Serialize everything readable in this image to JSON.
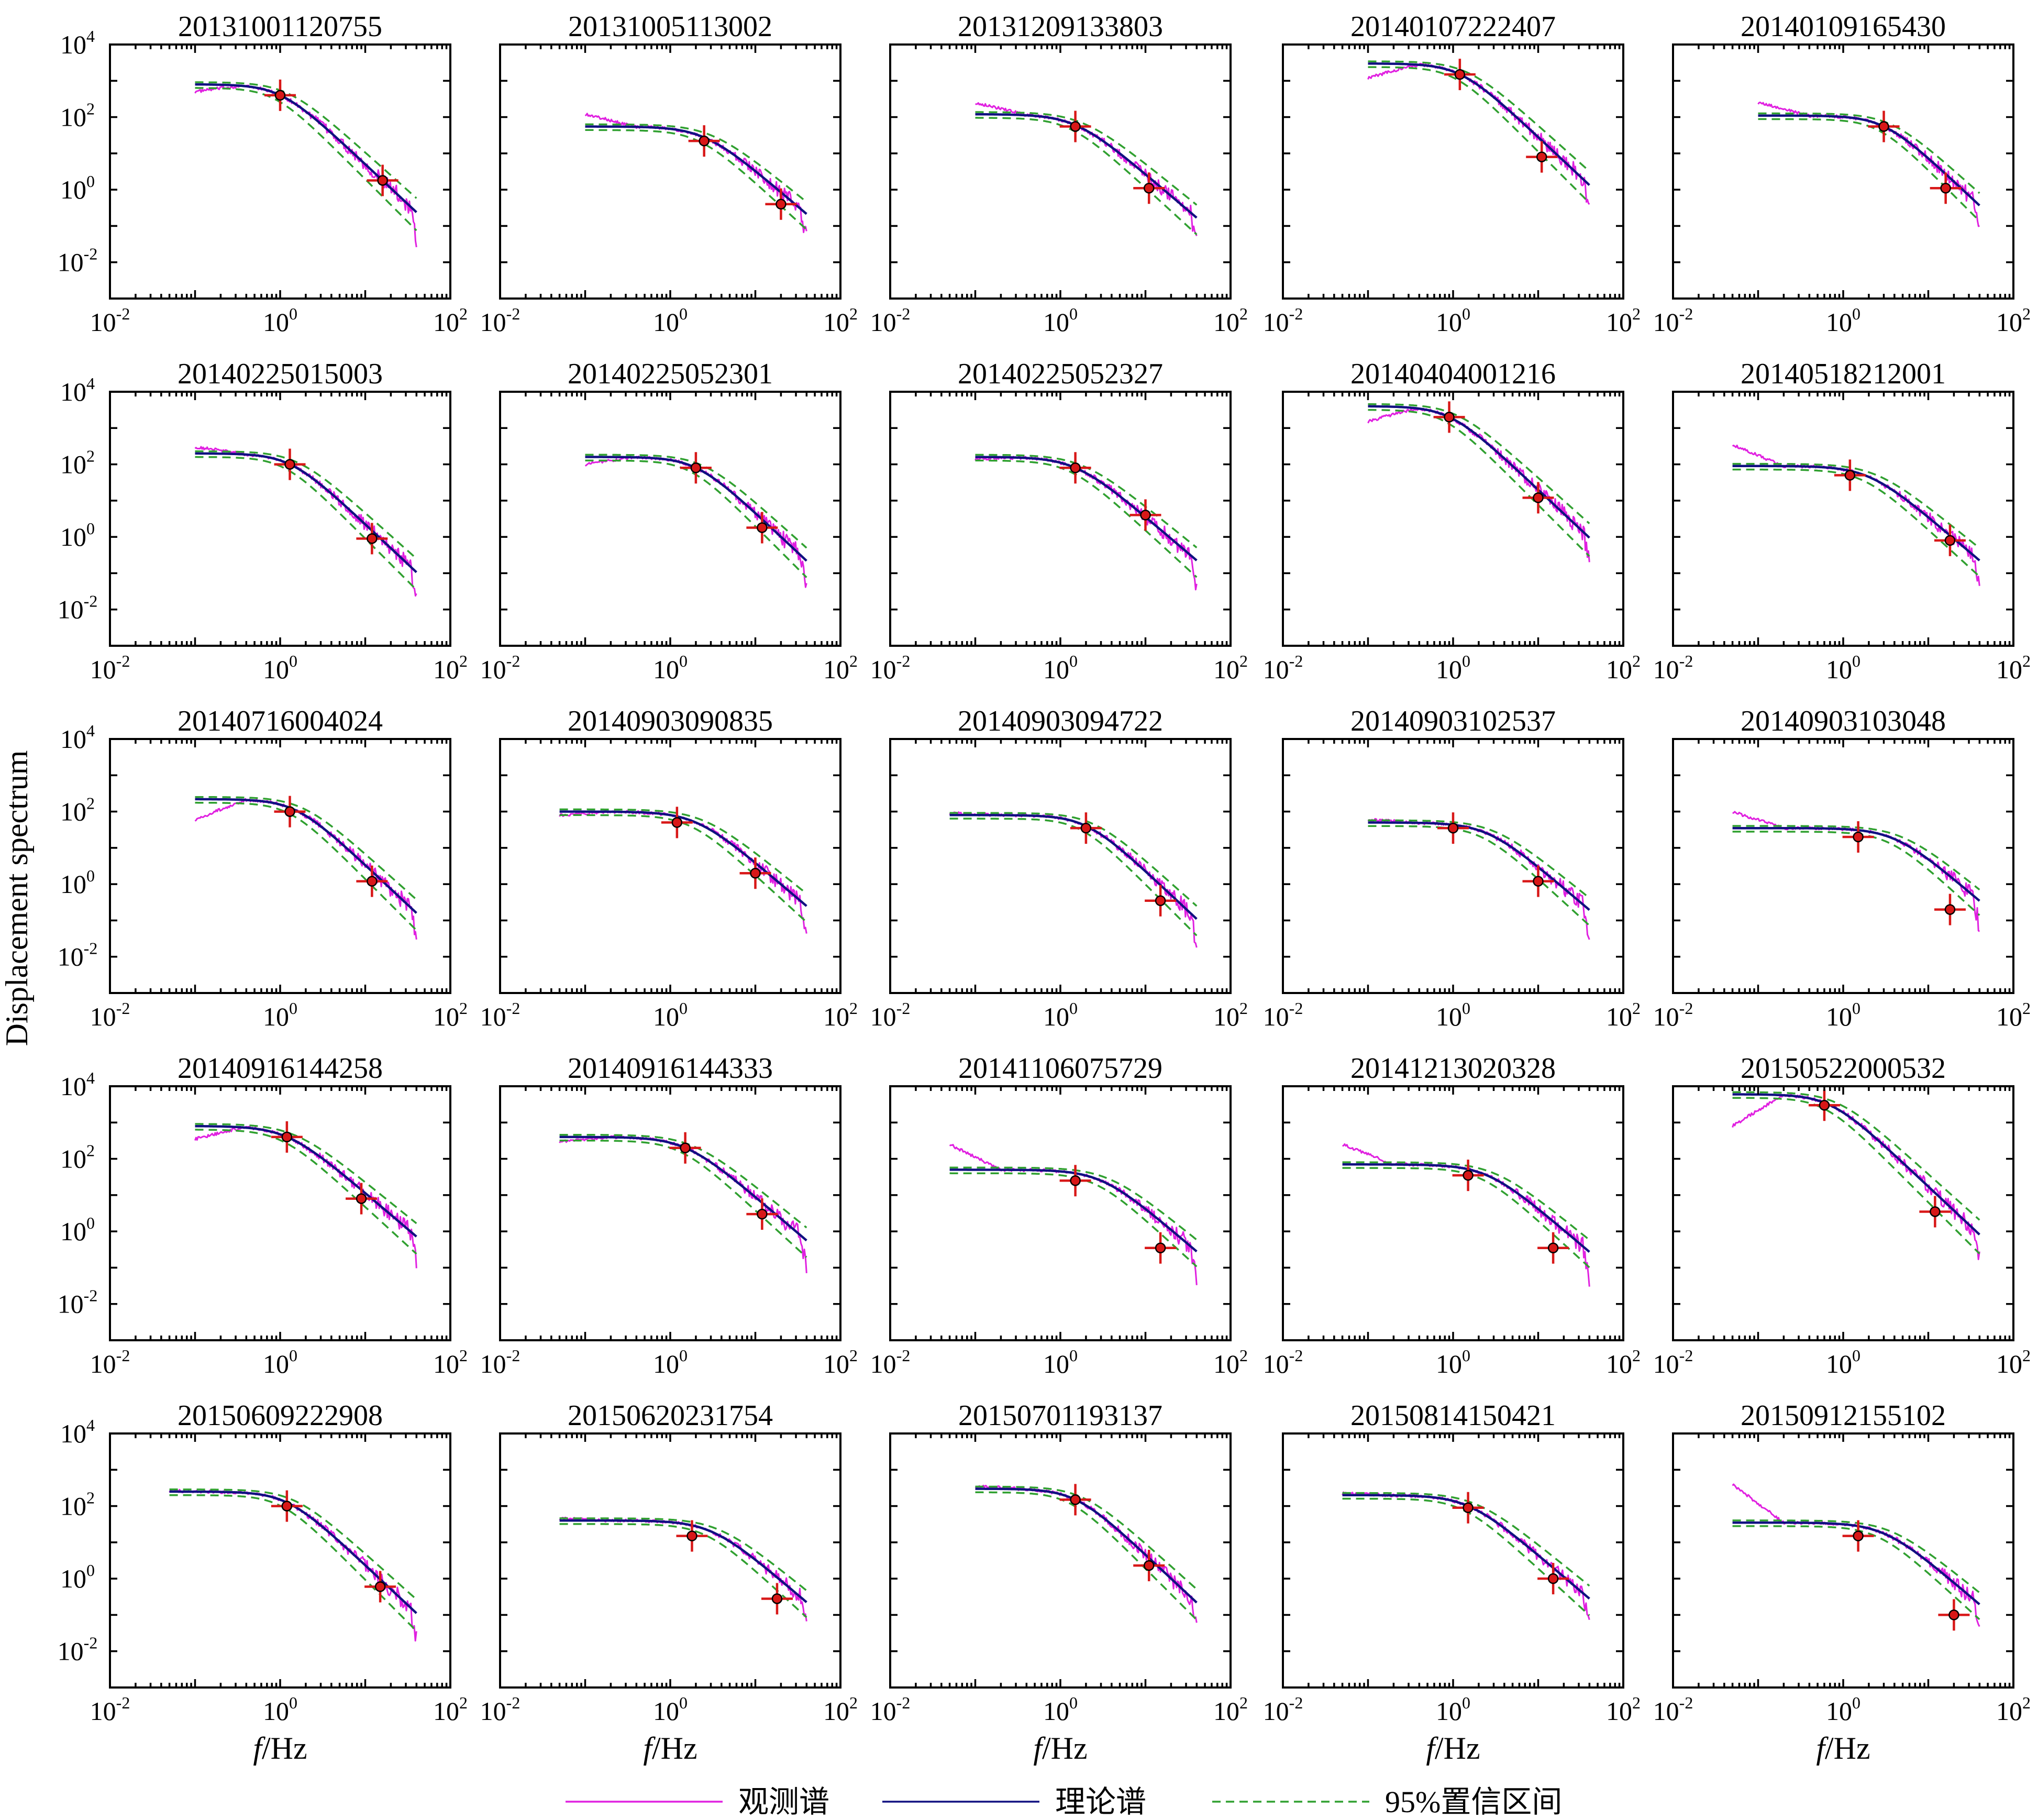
{
  "figure": {
    "ylabel": "Displacement spectrum",
    "xlabel_italic": "f",
    "xlabel_unit": "/Hz"
  },
  "legend": [
    {
      "label": "观测谱",
      "style": "solid",
      "color": "#e020e0"
    },
    {
      "label": "理论谱",
      "style": "solid",
      "color": "#101080"
    },
    {
      "label": "95%置信区间",
      "style": "dashed",
      "color": "#30a030"
    }
  ],
  "colors": {
    "observed": "#e020e0",
    "theoretical": "#101080",
    "confidence": "#30a030",
    "marker_fill": "#d81818",
    "axis": "#000000"
  },
  "chart_data": {
    "type": "line",
    "xscale": "log",
    "yscale": "log",
    "xlim": [
      0.01,
      100
    ],
    "ylim": [
      0.001,
      10000
    ],
    "xticks": [
      0.01,
      1,
      100
    ],
    "yticks": [
      0.01,
      1,
      100,
      10000
    ],
    "layout": "5x5 grid",
    "series_names": [
      "观测谱",
      "理论谱",
      "95%置信区间"
    ],
    "panels": [
      {
        "id": "20131001120755",
        "fmin": 0.1,
        "fmax": 40,
        "omega0": 800,
        "fc": 1.0,
        "n": 2.2,
        "obs_lo": 500,
        "markers": [
          [
            1.0,
            400
          ],
          [
            16,
            1.8
          ]
        ]
      },
      {
        "id": "20131005113002",
        "fmin": 0.1,
        "fmax": 40,
        "omega0": 55,
        "fc": 2.5,
        "n": 2.0,
        "obs_lo": 120,
        "markers": [
          [
            2.5,
            22
          ],
          [
            20,
            0.4
          ]
        ]
      },
      {
        "id": "20131209133803",
        "fmin": 0.1,
        "fmax": 40,
        "omega0": 120,
        "fc": 1.5,
        "n": 2.0,
        "obs_lo": 250,
        "markers": [
          [
            1.5,
            55
          ],
          [
            11,
            1.1
          ]
        ]
      },
      {
        "id": "20140107222407",
        "fmin": 0.1,
        "fmax": 40,
        "omega0": 3000,
        "fc": 1.2,
        "n": 2.2,
        "obs_lo": 1200,
        "markers": [
          [
            1.2,
            1500
          ],
          [
            11,
            8
          ]
        ]
      },
      {
        "id": "20140109165430",
        "fmin": 0.1,
        "fmax": 40,
        "omega0": 110,
        "fc": 3.0,
        "n": 2.2,
        "obs_lo": 250,
        "markers": [
          [
            3.0,
            55
          ],
          [
            16,
            1.1
          ]
        ]
      },
      {
        "id": "20140225015003",
        "fmin": 0.1,
        "fmax": 40,
        "omega0": 200,
        "fc": 1.3,
        "n": 2.2,
        "obs_lo": 300,
        "markers": [
          [
            1.3,
            100
          ],
          [
            12,
            0.9
          ]
        ]
      },
      {
        "id": "20140225052301",
        "fmin": 0.1,
        "fmax": 40,
        "omega0": 160,
        "fc": 2.0,
        "n": 2.2,
        "obs_lo": 100,
        "markers": [
          [
            2.0,
            80
          ],
          [
            12,
            1.8
          ]
        ]
      },
      {
        "id": "20140225052327",
        "fmin": 0.1,
        "fmax": 40,
        "omega0": 160,
        "fc": 1.5,
        "n": 2.0,
        "obs_lo": 140,
        "markers": [
          [
            1.5,
            80
          ],
          [
            10,
            4
          ]
        ]
      },
      {
        "id": "20140404001216",
        "fmin": 0.1,
        "fmax": 40,
        "omega0": 4000,
        "fc": 0.9,
        "n": 2.2,
        "obs_lo": 1500,
        "markers": [
          [
            0.9,
            2000
          ],
          [
            10,
            12
          ]
        ]
      },
      {
        "id": "20140518212001",
        "fmin": 0.05,
        "fmax": 40,
        "omega0": 90,
        "fc": 2.0,
        "n": 2.0,
        "obs_lo": 350,
        "markers": [
          [
            1.2,
            50
          ],
          [
            18,
            0.8
          ]
        ]
      },
      {
        "id": "20140716004024",
        "fmin": 0.1,
        "fmax": 40,
        "omega0": 220,
        "fc": 1.5,
        "n": 2.2,
        "obs_lo": 60,
        "markers": [
          [
            1.3,
            100
          ],
          [
            12,
            1.2
          ]
        ]
      },
      {
        "id": "20140903090835",
        "fmin": 0.05,
        "fmax": 40,
        "omega0": 100,
        "fc": 2.0,
        "n": 2.0,
        "obs_lo": 80,
        "markers": [
          [
            1.2,
            50
          ],
          [
            10,
            2
          ]
        ]
      },
      {
        "id": "20140903094722",
        "fmin": 0.05,
        "fmax": 40,
        "omega0": 80,
        "fc": 2.0,
        "n": 2.2,
        "obs_lo": 90,
        "markers": [
          [
            2.0,
            35
          ],
          [
            15,
            0.35
          ]
        ]
      },
      {
        "id": "20140903102537",
        "fmin": 0.1,
        "fmax": 40,
        "omega0": 50,
        "fc": 2.5,
        "n": 2.0,
        "obs_lo": 60,
        "markers": [
          [
            1.0,
            35
          ],
          [
            10,
            1.2
          ]
        ]
      },
      {
        "id": "20140903103048",
        "fmin": 0.05,
        "fmax": 40,
        "omega0": 35,
        "fc": 4.0,
        "n": 2.0,
        "obs_lo": 100,
        "markers": [
          [
            1.5,
            20
          ],
          [
            18,
            0.2
          ]
        ]
      },
      {
        "id": "20140916144258",
        "fmin": 0.1,
        "fmax": 40,
        "omega0": 800,
        "fc": 1.2,
        "n": 2.0,
        "obs_lo": 350,
        "markers": [
          [
            1.2,
            400
          ],
          [
            9,
            8
          ]
        ]
      },
      {
        "id": "20140916144333",
        "fmin": 0.05,
        "fmax": 40,
        "omega0": 400,
        "fc": 1.5,
        "n": 2.0,
        "obs_lo": 300,
        "markers": [
          [
            1.5,
            200
          ],
          [
            12,
            3
          ]
        ]
      },
      {
        "id": "20141106075729",
        "fmin": 0.05,
        "fmax": 40,
        "omega0": 50,
        "fc": 3.0,
        "n": 2.0,
        "obs_lo": 250,
        "markers": [
          [
            1.5,
            25
          ],
          [
            15,
            0.35
          ]
        ]
      },
      {
        "id": "20141213020328",
        "fmin": 0.05,
        "fmax": 40,
        "omega0": 70,
        "fc": 2.5,
        "n": 2.0,
        "obs_lo": 250,
        "markers": [
          [
            1.5,
            35
          ],
          [
            15,
            0.35
          ]
        ]
      },
      {
        "id": "20150522000532",
        "fmin": 0.05,
        "fmax": 40,
        "omega0": 6000,
        "fc": 0.7,
        "n": 2.2,
        "obs_lo": 800,
        "markers": [
          [
            0.6,
            3000
          ],
          [
            12,
            3.5
          ]
        ]
      },
      {
        "id": "20150609222908",
        "fmin": 0.05,
        "fmax": 40,
        "omega0": 250,
        "fc": 1.2,
        "n": 2.2,
        "obs_lo": 260,
        "markers": [
          [
            1.2,
            100
          ],
          [
            15,
            0.6
          ]
        ]
      },
      {
        "id": "20150620231754",
        "fmin": 0.05,
        "fmax": 40,
        "omega0": 40,
        "fc": 3.0,
        "n": 2.0,
        "obs_lo": 45,
        "markers": [
          [
            1.8,
            15
          ],
          [
            18,
            0.28
          ]
        ]
      },
      {
        "id": "20150701193137",
        "fmin": 0.1,
        "fmax": 40,
        "omega0": 300,
        "fc": 1.5,
        "n": 2.2,
        "obs_lo": 350,
        "markers": [
          [
            1.5,
            150
          ],
          [
            11,
            2.3
          ]
        ]
      },
      {
        "id": "20150814150421",
        "fmin": 0.05,
        "fmax": 40,
        "omega0": 200,
        "fc": 1.5,
        "n": 2.0,
        "obs_lo": 220,
        "markers": [
          [
            1.5,
            90
          ],
          [
            15,
            1.0
          ]
        ]
      },
      {
        "id": "20150912155102",
        "fmin": 0.05,
        "fmax": 40,
        "omega0": 35,
        "fc": 3.0,
        "n": 2.0,
        "obs_lo": 400,
        "markers": [
          [
            1.5,
            15
          ],
          [
            20,
            0.1
          ]
        ]
      }
    ]
  }
}
